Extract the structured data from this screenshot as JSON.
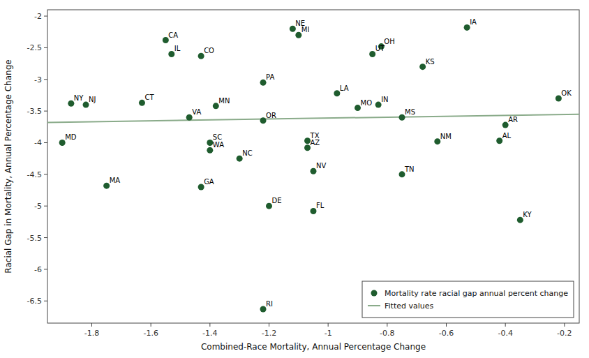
{
  "chart_data": {
    "type": "scatter",
    "xlabel": "Combined-Race Mortality, Annual Percentage Change",
    "ylabel": "Racial Gap in Mortality, Annual Percentage Change",
    "xlim": [
      -1.95,
      -0.15
    ],
    "ylim": [
      -6.85,
      -1.9
    ],
    "xticks": [
      -1.8,
      -1.6,
      -1.4,
      -1.2,
      -1.0,
      -0.8,
      -0.6,
      -0.4,
      -0.2
    ],
    "yticks": [
      -2.0,
      -2.5,
      -3.0,
      -3.5,
      -4.0,
      -4.5,
      -5.0,
      -5.5,
      -6.0,
      -6.5
    ],
    "legend": "lower right",
    "series": [
      {
        "name": "Mortality rate racial gap annual percent change",
        "type": "scatter",
        "color": "#1f5c2e",
        "labels": [
          "NY",
          "NJ",
          "CT",
          "MD",
          "MA",
          "CA",
          "IL",
          "CO",
          "VA",
          "SC",
          "WA",
          "GA",
          "MN",
          "PA",
          "NC",
          "OR",
          "DE",
          "RI",
          "TX",
          "AZ",
          "NV",
          "FL",
          "NE",
          "MI",
          "LA",
          "MO",
          "IN",
          "OH",
          "UT",
          "MS",
          "KS",
          "TN",
          "NM",
          "IA",
          "AL",
          "AR",
          "KY",
          "OK"
        ],
        "x": [
          -1.87,
          -1.82,
          -1.63,
          -1.9,
          -1.75,
          -1.55,
          -1.53,
          -1.43,
          -1.47,
          -1.4,
          -1.4,
          -1.43,
          -1.38,
          -1.22,
          -1.3,
          -1.22,
          -1.2,
          -1.22,
          -1.07,
          -1.07,
          -1.05,
          -1.05,
          -1.12,
          -1.1,
          -0.97,
          -0.9,
          -0.83,
          -0.82,
          -0.85,
          -0.75,
          -0.68,
          -0.75,
          -0.63,
          -0.53,
          -0.42,
          -0.4,
          -0.35,
          -0.22
        ],
        "values": [
          -3.38,
          -3.4,
          -3.37,
          -4.0,
          -4.68,
          -2.38,
          -2.6,
          -2.63,
          -3.6,
          -4.0,
          -4.12,
          -4.7,
          -3.42,
          -3.05,
          -4.25,
          -3.65,
          -5.0,
          -6.63,
          -3.97,
          -4.08,
          -4.45,
          -5.08,
          -2.2,
          -2.3,
          -3.22,
          -3.45,
          -3.4,
          -2.48,
          -2.6,
          -3.6,
          -2.8,
          -4.5,
          -3.98,
          -2.18,
          -3.97,
          -3.72,
          -5.22,
          -3.3
        ]
      },
      {
        "name": "Fitted values",
        "type": "line",
        "color": "#8aab8a",
        "x": [
          -1.95,
          -0.15
        ],
        "values": [
          -3.68,
          -3.55
        ]
      }
    ]
  }
}
